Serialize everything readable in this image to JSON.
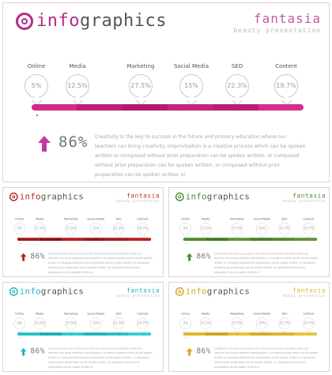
{
  "title_prefix": "info",
  "title_suffix": "graphics",
  "brand_name": "fantasia",
  "brand_tagline": "beauty presentation",
  "metrics": [
    {
      "label": "Online",
      "value": "5%"
    },
    {
      "label": "Media",
      "value": "12.5%"
    },
    {
      "label": "Marketing",
      "value": "27.5%"
    },
    {
      "label": "Social Media",
      "value": "15%"
    },
    {
      "label": "SEO",
      "value": "22.3%"
    },
    {
      "label": "Content",
      "value": "19.7%"
    }
  ],
  "highlight_percent": "86%",
  "description": "Creativity is the key to success in the future and primary education where our teachers can bring creativity. Improvisation is a creative process which can be spoken written or composed without prior preparation can be spoken written, or composed without prior preparation can be spoken written, or composed without prior preparation can be spoken written or",
  "variants": [
    {
      "id": "magenta",
      "accent": "#b62c8a",
      "brand": "#c05aa0",
      "arrow": "#c13aa0",
      "segments": [
        "#d12b8a",
        "#c01f77",
        "#b21a6c",
        "#c72480",
        "#bb1e73",
        "#d32f8e"
      ]
    },
    {
      "id": "red",
      "accent": "#b32a2a",
      "brand": "#b33a3a",
      "arrow": "#b32a2a",
      "segments": [
        "#a31a1a",
        "#8f1313",
        "#b22222",
        "#9b1717",
        "#a61d1d",
        "#b52626"
      ]
    },
    {
      "id": "green",
      "accent": "#4f8a34",
      "brand": "#5b8e3f",
      "arrow": "#4f8a34",
      "segments": [
        "#4e8a34",
        "#3e7a28",
        "#5a963e",
        "#457f2d",
        "#4f8a34",
        "#5a9540"
      ]
    },
    {
      "id": "teal",
      "accent": "#1fb8c1",
      "brand": "#28b6bf",
      "arrow": "#1fb8c1",
      "segments": [
        "#22c1c7",
        "#15adb4",
        "#2ccbd0",
        "#1bb3ba",
        "#23bfc5",
        "#30cdd2"
      ]
    },
    {
      "id": "gold",
      "accent": "#d4a81e",
      "brand": "#d9b93a",
      "arrow": "#d4a81e",
      "segments": [
        "#e0b523",
        "#cfa316",
        "#e7bf2e",
        "#d7ab1c",
        "#dfb325",
        "#e8c232"
      ]
    }
  ]
}
